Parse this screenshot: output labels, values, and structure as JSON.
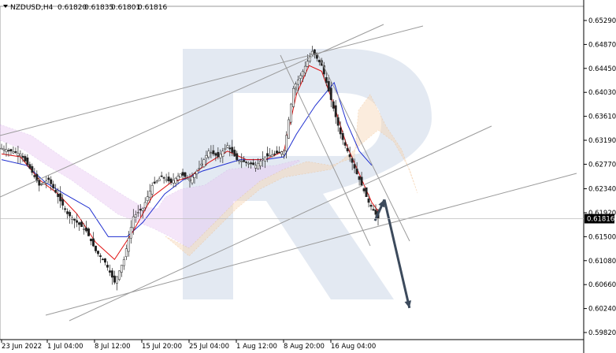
{
  "header": {
    "symbol": "NZDUSD,H4",
    "open": "0.61820",
    "high": "0.61835",
    "low": "0.61801",
    "close": "0.61816"
  },
  "chart_data": {
    "type": "candlestick",
    "current_price": 0.61816,
    "current_price_label": "0.61816",
    "ylim": [
      0.5985,
      0.656
    ],
    "y_ticks": [
      "0.65290",
      "0.64870",
      "0.64450",
      "0.64030",
      "0.63610",
      "0.63190",
      "0.62770",
      "0.62340",
      "0.61920",
      "0.61500",
      "0.61080",
      "0.60660",
      "0.60240",
      "0.59820"
    ],
    "x_ticks": [
      "23 Jun 2022",
      "1 Jul 04:00",
      "8 Jul 12:00",
      "15 Jul 20:00",
      "25 Jul 04:00",
      "1 Aug 12:00",
      "8 Aug 20:00",
      "16 Aug 04:00"
    ],
    "x_range": [
      0,
      120
    ],
    "close_path": [
      [
        0,
        0.6305
      ],
      [
        3,
        0.63
      ],
      [
        6,
        0.6295
      ],
      [
        9,
        0.627
      ],
      [
        12,
        0.624
      ],
      [
        15,
        0.625
      ],
      [
        18,
        0.622
      ],
      [
        21,
        0.619
      ],
      [
        24,
        0.6175
      ],
      [
        27,
        0.616
      ],
      [
        30,
        0.6125
      ],
      [
        33,
        0.6105
      ],
      [
        36,
        0.607
      ],
      [
        39,
        0.611
      ],
      [
        42,
        0.6185
      ],
      [
        45,
        0.62
      ],
      [
        48,
        0.624
      ],
      [
        51,
        0.6255
      ],
      [
        54,
        0.6245
      ],
      [
        57,
        0.626
      ],
      [
        60,
        0.625
      ],
      [
        63,
        0.627
      ],
      [
        66,
        0.63
      ],
      [
        69,
        0.629
      ],
      [
        72,
        0.631
      ],
      [
        75,
        0.6285
      ],
      [
        78,
        0.628
      ],
      [
        81,
        0.6275
      ],
      [
        84,
        0.629
      ],
      [
        87,
        0.6295
      ],
      [
        90,
        0.63
      ],
      [
        93,
        0.641
      ],
      [
        96,
        0.644
      ],
      [
        99,
        0.6475
      ],
      [
        102,
        0.645
      ],
      [
        105,
        0.639
      ],
      [
        108,
        0.633
      ],
      [
        111,
        0.629
      ],
      [
        114,
        0.625
      ],
      [
        117,
        0.621
      ],
      [
        120,
        0.6182
      ]
    ],
    "tenkan_path": [
      [
        0,
        0.6295
      ],
      [
        6,
        0.629
      ],
      [
        12,
        0.625
      ],
      [
        18,
        0.6225
      ],
      [
        24,
        0.619
      ],
      [
        30,
        0.614
      ],
      [
        36,
        0.611
      ],
      [
        42,
        0.616
      ],
      [
        48,
        0.622
      ],
      [
        54,
        0.6245
      ],
      [
        60,
        0.6255
      ],
      [
        66,
        0.628
      ],
      [
        72,
        0.63
      ],
      [
        78,
        0.6285
      ],
      [
        84,
        0.6285
      ],
      [
        90,
        0.63
      ],
      [
        94,
        0.64
      ],
      [
        98,
        0.645
      ],
      [
        102,
        0.644
      ],
      [
        106,
        0.638
      ],
      [
        110,
        0.631
      ],
      [
        114,
        0.626
      ],
      [
        118,
        0.621
      ],
      [
        120,
        0.6195
      ]
    ],
    "kijun_path": [
      [
        0,
        0.6285
      ],
      [
        8,
        0.6275
      ],
      [
        14,
        0.6245
      ],
      [
        20,
        0.6225
      ],
      [
        28,
        0.62
      ],
      [
        34,
        0.615
      ],
      [
        40,
        0.615
      ],
      [
        45,
        0.6175
      ],
      [
        52,
        0.6225
      ],
      [
        58,
        0.625
      ],
      [
        64,
        0.6265
      ],
      [
        70,
        0.6275
      ],
      [
        76,
        0.6285
      ],
      [
        84,
        0.6285
      ],
      [
        90,
        0.629
      ],
      [
        94,
        0.633
      ],
      [
        100,
        0.638
      ],
      [
        106,
        0.642
      ],
      [
        110,
        0.635
      ],
      [
        114,
        0.63
      ],
      [
        118,
        0.6275
      ]
    ],
    "forecast_path": [
      [
        119,
        0.6178
      ],
      [
        122,
        0.6215
      ],
      [
        130,
        0.6025
      ]
    ]
  }
}
